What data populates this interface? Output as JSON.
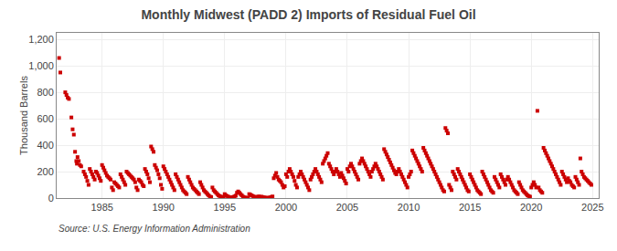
{
  "chart_data": {
    "type": "scatter",
    "title": "Monthly Midwest (PADD 2) Imports of Residual Fuel Oil",
    "ylabel": "Thousand Barrels",
    "annotations": [
      "Source: U.S. Energy Information Administration"
    ],
    "color": "#cc0000",
    "marker": "square",
    "grid": true,
    "xlim": [
      1981.3,
      2025.5
    ],
    "xticks": [
      1985,
      1990,
      1995,
      2000,
      2005,
      2010,
      2015,
      2020,
      2025
    ],
    "ylim": [
      0,
      1250
    ],
    "yticks": [
      0,
      200,
      400,
      600,
      800,
      {
        "value": 1000,
        "label": "1,000"
      },
      {
        "value": 1200,
        "label": "1,200"
      }
    ],
    "x": [
      1981.5,
      1981.6,
      1982.0,
      1982.1,
      1982.2,
      1982.3,
      1982.5,
      1982.6,
      1982.7,
      1982.8,
      1982.9,
      1982.95,
      1983.0,
      1983.1,
      1983.2,
      1983.3,
      1983.5,
      1983.6,
      1983.7,
      1983.8,
      1983.9,
      1984.0,
      1984.1,
      1984.2,
      1984.3,
      1984.4,
      1984.5,
      1984.6,
      1984.7,
      1984.8,
      1984.9,
      1985.0,
      1985.1,
      1985.2,
      1985.3,
      1985.4,
      1985.5,
      1985.6,
      1985.7,
      1985.8,
      1985.9,
      1986.0,
      1986.1,
      1986.2,
      1986.3,
      1986.4,
      1986.5,
      1986.6,
      1986.7,
      1986.8,
      1986.9,
      1987.0,
      1987.1,
      1987.2,
      1987.3,
      1987.4,
      1987.5,
      1987.6,
      1987.7,
      1987.8,
      1987.9,
      1988.0,
      1988.1,
      1988.2,
      1988.3,
      1988.4,
      1988.5,
      1988.6,
      1988.7,
      1988.8,
      1988.9,
      1989.0,
      1989.1,
      1989.2,
      1989.3,
      1989.4,
      1989.5,
      1989.6,
      1989.7,
      1989.8,
      1989.9,
      1990.0,
      1990.1,
      1990.2,
      1990.3,
      1990.4,
      1990.5,
      1990.6,
      1990.7,
      1990.8,
      1990.9,
      1991.0,
      1991.1,
      1991.2,
      1991.3,
      1991.4,
      1991.5,
      1991.6,
      1991.7,
      1991.8,
      1991.9,
      1992.0,
      1992.1,
      1992.2,
      1992.3,
      1992.4,
      1992.5,
      1992.6,
      1992.7,
      1992.8,
      1992.9,
      1993.0,
      1993.1,
      1993.2,
      1993.3,
      1993.4,
      1993.5,
      1993.6,
      1993.7,
      1993.8,
      1993.9,
      1994.0,
      1994.1,
      1994.2,
      1994.3,
      1994.4,
      1994.5,
      1994.6,
      1994.7,
      1994.8,
      1994.9,
      1995.0,
      1995.1,
      1995.2,
      1995.3,
      1995.4,
      1995.5,
      1995.6,
      1995.7,
      1995.8,
      1995.9,
      1996.0,
      1996.1,
      1996.2,
      1996.3,
      1996.4,
      1996.5,
      1996.6,
      1996.7,
      1996.8,
      1996.9,
      1997.0,
      1997.1,
      1997.2,
      1997.3,
      1997.4,
      1997.5,
      1997.6,
      1997.7,
      1997.8,
      1997.9,
      1998.0,
      1998.1,
      1998.2,
      1998.3,
      1998.4,
      1998.5,
      1998.6,
      1998.7,
      1998.8,
      1998.9,
      1999.0,
      1999.1,
      1999.2,
      1999.3,
      1999.4,
      1999.5,
      1999.6,
      1999.7,
      1999.8,
      1999.9,
      2000.0,
      2000.1,
      2000.2,
      2000.3,
      2000.4,
      2000.5,
      2000.6,
      2000.7,
      2000.8,
      2000.9,
      2001.0,
      2001.1,
      2001.2,
      2001.3,
      2001.4,
      2001.5,
      2001.6,
      2001.7,
      2001.8,
      2001.9,
      2002.0,
      2002.1,
      2002.2,
      2002.3,
      2002.4,
      2002.5,
      2002.6,
      2002.7,
      2002.8,
      2002.9,
      2003.0,
      2003.1,
      2003.2,
      2003.3,
      2003.4,
      2003.5,
      2003.6,
      2003.7,
      2003.8,
      2003.9,
      2004.0,
      2004.1,
      2004.2,
      2004.3,
      2004.4,
      2004.5,
      2004.6,
      2004.7,
      2004.8,
      2004.9,
      2005.0,
      2005.1,
      2005.2,
      2005.3,
      2005.4,
      2005.5,
      2005.6,
      2005.7,
      2005.8,
      2005.9,
      2006.0,
      2006.1,
      2006.2,
      2006.3,
      2006.4,
      2006.5,
      2006.6,
      2006.7,
      2006.8,
      2006.9,
      2007.0,
      2007.1,
      2007.2,
      2007.3,
      2007.4,
      2007.5,
      2007.6,
      2007.7,
      2007.8,
      2007.9,
      2008.0,
      2008.1,
      2008.2,
      2008.3,
      2008.4,
      2008.5,
      2008.6,
      2008.7,
      2008.8,
      2008.9,
      2009.0,
      2009.1,
      2009.2,
      2009.3,
      2009.4,
      2009.5,
      2009.6,
      2009.7,
      2009.8,
      2009.9,
      2010.0,
      2010.1,
      2010.2,
      2010.3,
      2010.4,
      2010.5,
      2010.6,
      2010.7,
      2010.8,
      2010.9,
      2011.0,
      2011.1,
      2011.2,
      2011.3,
      2011.4,
      2011.5,
      2011.6,
      2011.7,
      2011.8,
      2011.9,
      2012.0,
      2012.1,
      2012.2,
      2012.3,
      2012.4,
      2012.5,
      2012.6,
      2012.7,
      2012.8,
      2012.9,
      2013.0,
      2013.1,
      2013.2,
      2013.3,
      2013.4,
      2013.5,
      2013.6,
      2013.7,
      2013.8,
      2013.9,
      2014.0,
      2014.1,
      2014.2,
      2014.3,
      2014.4,
      2014.5,
      2014.6,
      2014.7,
      2014.8,
      2014.9,
      2015.0,
      2015.1,
      2015.2,
      2015.3,
      2015.4,
      2015.5,
      2015.6,
      2015.7,
      2015.8,
      2015.9,
      2016.0,
      2016.1,
      2016.2,
      2016.3,
      2016.4,
      2016.5,
      2016.6,
      2016.7,
      2016.8,
      2016.9,
      2017.0,
      2017.1,
      2017.2,
      2017.3,
      2017.4,
      2017.5,
      2017.6,
      2017.7,
      2017.8,
      2017.9,
      2018.0,
      2018.1,
      2018.2,
      2018.3,
      2018.4,
      2018.5,
      2018.6,
      2018.7,
      2018.8,
      2018.9,
      2019.0,
      2019.1,
      2019.2,
      2019.3,
      2019.4,
      2019.5,
      2019.6,
      2019.7,
      2019.8,
      2019.9,
      2020.0,
      2020.1,
      2020.2,
      2020.3,
      2020.4,
      2020.5,
      2020.6,
      2020.7,
      2020.8,
      2020.9,
      2021.0,
      2021.1,
      2021.2,
      2021.3,
      2021.4,
      2021.5,
      2021.6,
      2021.7,
      2021.8,
      2021.9,
      2022.0,
      2022.1,
      2022.2,
      2022.3,
      2022.4,
      2022.5,
      2022.6,
      2022.7,
      2022.8,
      2022.9,
      2023.0,
      2023.1,
      2023.2,
      2023.3,
      2023.4,
      2023.5,
      2023.6,
      2023.7,
      2023.8,
      2023.9,
      2024.0,
      2024.1,
      2024.2,
      2024.3,
      2024.4,
      2024.5,
      2024.6,
      2024.7,
      2024.8,
      2024.9
    ],
    "values": [
      1060,
      950,
      800,
      780,
      760,
      750,
      610,
      520,
      480,
      350,
      280,
      260,
      310,
      280,
      250,
      240,
      200,
      180,
      160,
      130,
      100,
      220,
      200,
      180,
      160,
      140,
      200,
      190,
      170,
      150,
      130,
      250,
      230,
      210,
      190,
      170,
      160,
      150,
      140,
      80,
      60,
      120,
      110,
      100,
      90,
      80,
      180,
      160,
      140,
      120,
      100,
      200,
      190,
      180,
      170,
      160,
      150,
      140,
      120,
      80,
      60,
      140,
      130,
      120,
      100,
      90,
      220,
      200,
      180,
      150,
      120,
      390,
      370,
      350,
      250,
      230,
      210,
      180,
      150,
      100,
      70,
      240,
      220,
      200,
      180,
      160,
      140,
      120,
      100,
      80,
      60,
      180,
      160,
      140,
      120,
      100,
      80,
      60,
      50,
      40,
      30,
      160,
      140,
      120,
      100,
      80,
      70,
      60,
      50,
      40,
      30,
      120,
      100,
      80,
      60,
      50,
      40,
      30,
      20,
      10,
      8,
      80,
      60,
      50,
      40,
      30,
      20,
      15,
      10,
      8,
      5,
      30,
      20,
      15,
      10,
      5,
      3,
      5,
      8,
      12,
      18,
      40,
      50,
      40,
      30,
      20,
      10,
      5,
      3,
      2,
      1,
      30,
      25,
      20,
      15,
      10,
      5,
      8,
      10,
      12,
      8,
      10,
      8,
      5,
      3,
      2,
      1,
      2,
      5,
      8,
      12,
      150,
      170,
      190,
      160,
      140,
      130,
      120,
      100,
      80,
      90,
      180,
      160,
      200,
      220,
      200,
      180,
      160,
      130,
      100,
      80,
      160,
      180,
      200,
      180,
      160,
      140,
      120,
      100,
      80,
      60,
      140,
      160,
      180,
      200,
      220,
      200,
      180,
      160,
      140,
      120,
      260,
      280,
      300,
      320,
      340,
      260,
      240,
      220,
      200,
      180,
      200,
      220,
      200,
      180,
      160,
      190,
      170,
      150,
      130,
      110,
      220,
      200,
      240,
      260,
      240,
      220,
      200,
      180,
      160,
      140,
      260,
      280,
      300,
      280,
      260,
      240,
      220,
      200,
      180,
      160,
      200,
      220,
      240,
      260,
      240,
      220,
      200,
      180,
      160,
      140,
      370,
      350,
      330,
      310,
      290,
      270,
      250,
      230,
      210,
      190,
      180,
      200,
      220,
      200,
      180,
      160,
      140,
      120,
      100,
      80,
      160,
      180,
      200,
      360,
      340,
      320,
      300,
      280,
      260,
      240,
      220,
      200,
      380,
      360,
      340,
      320,
      300,
      280,
      260,
      240,
      220,
      200,
      180,
      160,
      140,
      120,
      100,
      80,
      60,
      50,
      530,
      510,
      490,
      100,
      80,
      60,
      200,
      180,
      160,
      140,
      220,
      200,
      180,
      160,
      140,
      120,
      100,
      80,
      60,
      50,
      180,
      160,
      140,
      120,
      100,
      80,
      60,
      50,
      40,
      30,
      200,
      180,
      160,
      140,
      120,
      100,
      80,
      60,
      50,
      40,
      160,
      140,
      120,
      100,
      80,
      180,
      160,
      140,
      120,
      100,
      140,
      160,
      140,
      120,
      100,
      80,
      60,
      50,
      40,
      30,
      120,
      100,
      80,
      60,
      50,
      40,
      30,
      20,
      15,
      10,
      80,
      100,
      120,
      100,
      80,
      660,
      80,
      60,
      50,
      40,
      380,
      360,
      340,
      320,
      300,
      280,
      260,
      240,
      220,
      200,
      180,
      160,
      140,
      120,
      100,
      200,
      180,
      160,
      140,
      120,
      150,
      130,
      120,
      100,
      90,
      80,
      160,
      140,
      120,
      100,
      300,
      200,
      180,
      160,
      150,
      140,
      130,
      120,
      110,
      100
    ]
  }
}
